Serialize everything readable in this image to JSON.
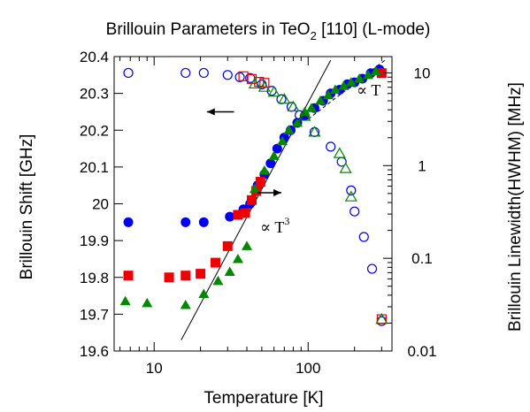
{
  "chart_data": {
    "type": "scatter",
    "title": {
      "main": "Brillouin Parameters in TeO",
      "sub": "2",
      "rest": " [110] (L-mode)"
    },
    "xlabel": "Temperature [K]",
    "ylabel": "Brillouin Shift [GHz]",
    "y2label": "Brillouin Linewidth(HWHM) [MHz]",
    "x_scale": "log",
    "xlim": [
      5.5,
      350
    ],
    "ylim": [
      19.6,
      20.4
    ],
    "y2_scale": "log",
    "y2lim": [
      0.01,
      15
    ],
    "x_ticks": [
      {
        "value": 10,
        "label": "10"
      },
      {
        "value": 100,
        "label": "100"
      }
    ],
    "y_ticks": [
      {
        "value": 19.6,
        "label": "19.6"
      },
      {
        "value": 19.7,
        "label": "19.7"
      },
      {
        "value": 19.8,
        "label": "19.8"
      },
      {
        "value": 19.9,
        "label": "19.9"
      },
      {
        "value": 20.0,
        "label": "20"
      },
      {
        "value": 20.1,
        "label": "20.1"
      },
      {
        "value": 20.2,
        "label": "20.2"
      },
      {
        "value": 20.3,
        "label": "20.3"
      },
      {
        "value": 20.4,
        "label": "20.4"
      }
    ],
    "y2_ticks": [
      {
        "value": 0.01,
        "label": "0.01"
      },
      {
        "value": 0.1,
        "label": "0.1"
      },
      {
        "value": 1,
        "label": "1"
      },
      {
        "value": 10,
        "label": "10"
      }
    ],
    "grid": false,
    "colors": {
      "blue": "#0000ee",
      "red": "#ee0000",
      "green": "#008800"
    },
    "series": [
      {
        "axis": "left",
        "marker": "circle-filled",
        "color": "#0000ee",
        "points": [
          [
            6.8,
            19.95
          ],
          [
            16,
            19.95
          ],
          [
            21,
            19.95
          ],
          [
            31,
            19.965
          ],
          [
            38,
            19.985
          ],
          [
            42,
            20.0
          ],
          [
            47,
            20.05
          ],
          [
            52,
            20.08
          ],
          [
            57,
            20.11
          ],
          [
            63,
            20.15
          ],
          [
            70,
            20.18
          ],
          [
            77,
            20.2
          ],
          [
            85,
            20.22
          ],
          [
            95,
            20.24
          ],
          [
            110,
            20.26
          ],
          [
            125,
            20.28
          ],
          [
            140,
            20.3
          ],
          [
            160,
            20.31
          ],
          [
            180,
            20.325
          ],
          [
            200,
            20.33
          ],
          [
            225,
            20.34
          ],
          [
            255,
            20.355
          ],
          [
            290,
            20.365
          ]
        ]
      },
      {
        "axis": "left",
        "marker": "square-filled",
        "color": "#ee0000",
        "points": [
          [
            6.8,
            19.805
          ],
          [
            12.5,
            19.8
          ],
          [
            16,
            19.805
          ],
          [
            20,
            19.81
          ],
          [
            25,
            19.84
          ],
          [
            30,
            19.885
          ],
          [
            35,
            19.97
          ],
          [
            39,
            19.975
          ],
          [
            43,
            20.01
          ],
          [
            46,
            20.035
          ],
          [
            49,
            20.06
          ],
          [
            300,
            20.355
          ]
        ]
      },
      {
        "axis": "left",
        "marker": "triangle-filled",
        "color": "#008800",
        "points": [
          [
            6.5,
            19.735
          ],
          [
            9,
            19.73
          ],
          [
            16,
            19.725
          ],
          [
            21,
            19.755
          ],
          [
            26,
            19.79
          ],
          [
            31,
            19.815
          ],
          [
            35,
            19.85
          ],
          [
            40,
            19.885
          ],
          [
            45,
            20.04
          ],
          [
            52,
            20.09
          ],
          [
            60,
            20.13
          ],
          [
            68,
            20.17
          ],
          [
            75,
            20.2
          ],
          [
            85,
            20.22
          ],
          [
            95,
            20.25
          ],
          [
            105,
            20.26
          ],
          [
            120,
            20.28
          ],
          [
            135,
            20.295
          ],
          [
            150,
            20.31
          ],
          [
            170,
            20.32
          ],
          [
            190,
            20.33
          ],
          [
            215,
            20.34
          ],
          [
            245,
            20.35
          ],
          [
            275,
            20.36
          ]
        ]
      },
      {
        "axis": "right",
        "marker": "circle-open",
        "color": "#0000ee",
        "points": [
          [
            6.8,
            10
          ],
          [
            16,
            10
          ],
          [
            21,
            10
          ],
          [
            30,
            9.5
          ],
          [
            36,
            9
          ],
          [
            42,
            8.8
          ],
          [
            50,
            7.5
          ],
          [
            58,
            6.4
          ],
          [
            67,
            5.2
          ],
          [
            78,
            4.3
          ],
          [
            88,
            3.5
          ],
          [
            110,
            2.3
          ],
          [
            140,
            1.6
          ],
          [
            165,
            1.1
          ],
          [
            190,
            0.54
          ],
          [
            200,
            0.32
          ],
          [
            230,
            0.17
          ],
          [
            260,
            0.077
          ],
          [
            300,
            0.021
          ]
        ]
      },
      {
        "axis": "right",
        "marker": "square-open",
        "color": "#ee0000",
        "points": [
          [
            38,
            9.2
          ],
          [
            43,
            8.6
          ],
          [
            48,
            8.0
          ],
          [
            52,
            7.8
          ],
          [
            300,
            0.022
          ]
        ]
      },
      {
        "axis": "right",
        "marker": "triangle-open",
        "color": "#008800",
        "points": [
          [
            45,
            7.6
          ],
          [
            52,
            7.0
          ],
          [
            60,
            6.2
          ],
          [
            70,
            5.2
          ],
          [
            80,
            4.3
          ],
          [
            95,
            3.4
          ],
          [
            110,
            2.3
          ],
          [
            160,
            1.35
          ],
          [
            175,
            0.93
          ],
          [
            190,
            0.46
          ],
          [
            300,
            0.022
          ]
        ]
      }
    ],
    "fit_lines": [
      {
        "label_base": "∝ T",
        "label_exp": "3",
        "style": "solid",
        "from": [
          15,
          19.63
        ],
        "to": [
          140,
          20.39
        ]
      },
      {
        "label_base": "∝ T",
        "label_exp": "",
        "style": "dashed",
        "from": [
          100,
          20.23
        ],
        "to": [
          315,
          20.39
        ]
      }
    ],
    "arrows": [
      {
        "direction": "left",
        "points_to": "left axis",
        "from": [
          33,
          20.25
        ],
        "to": [
          22,
          20.25
        ]
      },
      {
        "direction": "right",
        "points_to": "right axis",
        "from": [
          47,
          20.03
        ],
        "to": [
          67,
          20.03
        ]
      }
    ]
  }
}
